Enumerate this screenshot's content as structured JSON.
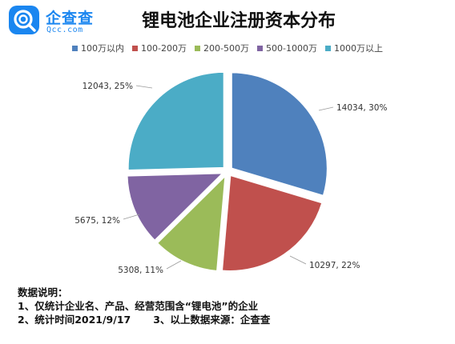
{
  "logo": {
    "name": "企查查",
    "domain": "Qcc.com",
    "color": "#1a86f0"
  },
  "chart_data": {
    "type": "pie",
    "title": "锂电池企业注册资本分布",
    "legend_position": "top",
    "categories": [
      "100万以内",
      "100-200万",
      "200-500万",
      "500-1000万",
      "1000万以上"
    ],
    "values": [
      14034,
      10297,
      5308,
      5675,
      12043
    ],
    "percents": [
      "30%",
      "22%",
      "11%",
      "12%",
      "25%"
    ],
    "data_labels": [
      "14034, 30%",
      "10297, 22%",
      "5308, 11%",
      "5675, 12%",
      "12043, 25%"
    ],
    "colors": [
      "#4f81bd",
      "#c0504d",
      "#9bbb59",
      "#8064a2",
      "#4bacc6"
    ]
  },
  "notes": {
    "heading": "数据说明：",
    "line1": "1、仅统计企业名、产品、经营范围含“锂电池”的企业",
    "line2a": "2、统计时间2021/9/17",
    "line2b": "3、以上数据来源：企查查"
  }
}
